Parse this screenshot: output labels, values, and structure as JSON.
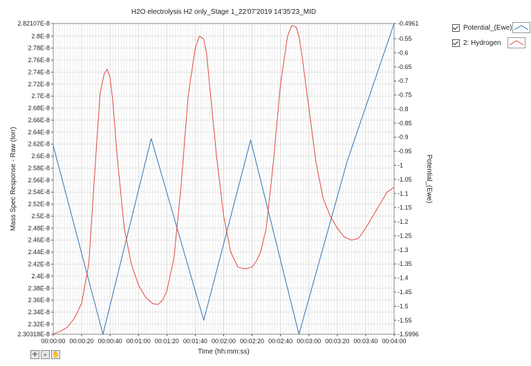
{
  "chart_data": {
    "type": "line",
    "title": "H2O electrolysis H2 only_Stage 1_22'07'2019 14'35'23_MID",
    "xlabel": "Time (hh:mm:ss)",
    "ylabel_left": "Mass Spec Response - Raw (torr)",
    "ylabel_right": "Potential_(Ewe)",
    "x_tick_labels": [
      "00:00:00",
      "00:00:20",
      "00:00:40",
      "00:01:00",
      "00:01:20",
      "00:01:40",
      "00:02:00",
      "00:02:20",
      "00:02:40",
      "00:03:00",
      "00:03:20",
      "00:03:40",
      "00:04:00"
    ],
    "x_range_seconds": [
      0,
      240
    ],
    "y_left_ticks": [
      "2.30318E-8",
      "2.32E-8",
      "2.34E-8",
      "2.36E-8",
      "2.38E-8",
      "2.4E-8",
      "2.42E-8",
      "2.44E-8",
      "2.46E-8",
      "2.48E-8",
      "2.5E-8",
      "2.52E-8",
      "2.54E-8",
      "2.56E-8",
      "2.58E-8",
      "2.6E-8",
      "2.62E-8",
      "2.64E-8",
      "2.66E-8",
      "2.68E-8",
      "2.7E-8",
      "2.72E-8",
      "2.74E-8",
      "2.76E-8",
      "2.78E-8",
      "2.8E-8",
      "2.82107E-8"
    ],
    "y_left_range": [
      2.30318e-08,
      2.82107e-08
    ],
    "y_right_ticks": [
      "-1.5996",
      "-1.55",
      "-1.5",
      "-1.45",
      "-1.4",
      "-1.35",
      "-1.3",
      "-1.25",
      "-1.2",
      "-1.15",
      "-1.1",
      "-1.05",
      "-1",
      "-0.95",
      "-0.9",
      "-0.85",
      "-0.8",
      "-0.75",
      "-0.7",
      "-0.65",
      "-0.6",
      "-0.55",
      "-0.4961"
    ],
    "y_right_range": [
      -1.5996,
      -0.4961
    ],
    "grid": true,
    "legend_position": "right",
    "series": [
      {
        "name": "Potential_(Ewe)",
        "axis": "right",
        "color": "#2e6fb0",
        "x": [
          0,
          35,
          69,
          106,
          139,
          173,
          207,
          240
        ],
        "y": [
          -0.93,
          -1.5996,
          -0.905,
          -1.55,
          -0.91,
          -1.5996,
          -0.985,
          -0.4961
        ]
      },
      {
        "name": "2: Hydrogen",
        "axis": "left",
        "color": "#e0453a",
        "x": [
          0,
          5,
          10,
          15,
          20,
          25,
          30,
          33,
          36,
          38,
          40,
          42,
          45,
          50,
          55,
          60,
          65,
          70,
          74,
          77,
          80,
          85,
          90,
          95,
          100,
          103,
          106,
          108,
          110,
          115,
          120,
          125,
          130,
          135,
          140,
          143,
          146,
          150,
          155,
          160,
          165,
          168,
          171,
          173,
          175,
          180,
          185,
          190,
          195,
          200,
          205,
          210,
          215,
          220,
          225,
          230,
          235,
          240
        ],
        "y": [
          2.3035e-08,
          2.308e-08,
          2.315e-08,
          2.33e-08,
          2.355e-08,
          2.42e-08,
          2.6e-08,
          2.705e-08,
          2.738e-08,
          2.745e-08,
          2.73e-08,
          2.69e-08,
          2.6e-08,
          2.48e-08,
          2.42e-08,
          2.385e-08,
          2.365e-08,
          2.354e-08,
          2.353e-08,
          2.36e-08,
          2.375e-08,
          2.43e-08,
          2.55e-08,
          2.7e-08,
          2.78e-08,
          2.8e-08,
          2.795e-08,
          2.77e-08,
          2.72e-08,
          2.6e-08,
          2.5e-08,
          2.44e-08,
          2.415e-08,
          2.412e-08,
          2.415e-08,
          2.425e-08,
          2.44e-08,
          2.48e-08,
          2.59e-08,
          2.72e-08,
          2.8e-08,
          2.818e-08,
          2.815e-08,
          2.8e-08,
          2.77e-08,
          2.68e-08,
          2.59e-08,
          2.53e-08,
          2.5e-08,
          2.48e-08,
          2.465e-08,
          2.46e-08,
          2.463e-08,
          2.48e-08,
          2.5e-08,
          2.52e-08,
          2.54e-08,
          2.548e-08
        ]
      }
    ]
  },
  "legend": {
    "items": [
      {
        "label": "Potential_(Ewe)",
        "color": "#2e6fb0"
      },
      {
        "label": "2: Hydrogen",
        "color": "#e0453a"
      }
    ]
  },
  "toolbar": {
    "icons": [
      "cursor-move-icon",
      "zoom-icon",
      "pan-hand-icon"
    ]
  }
}
